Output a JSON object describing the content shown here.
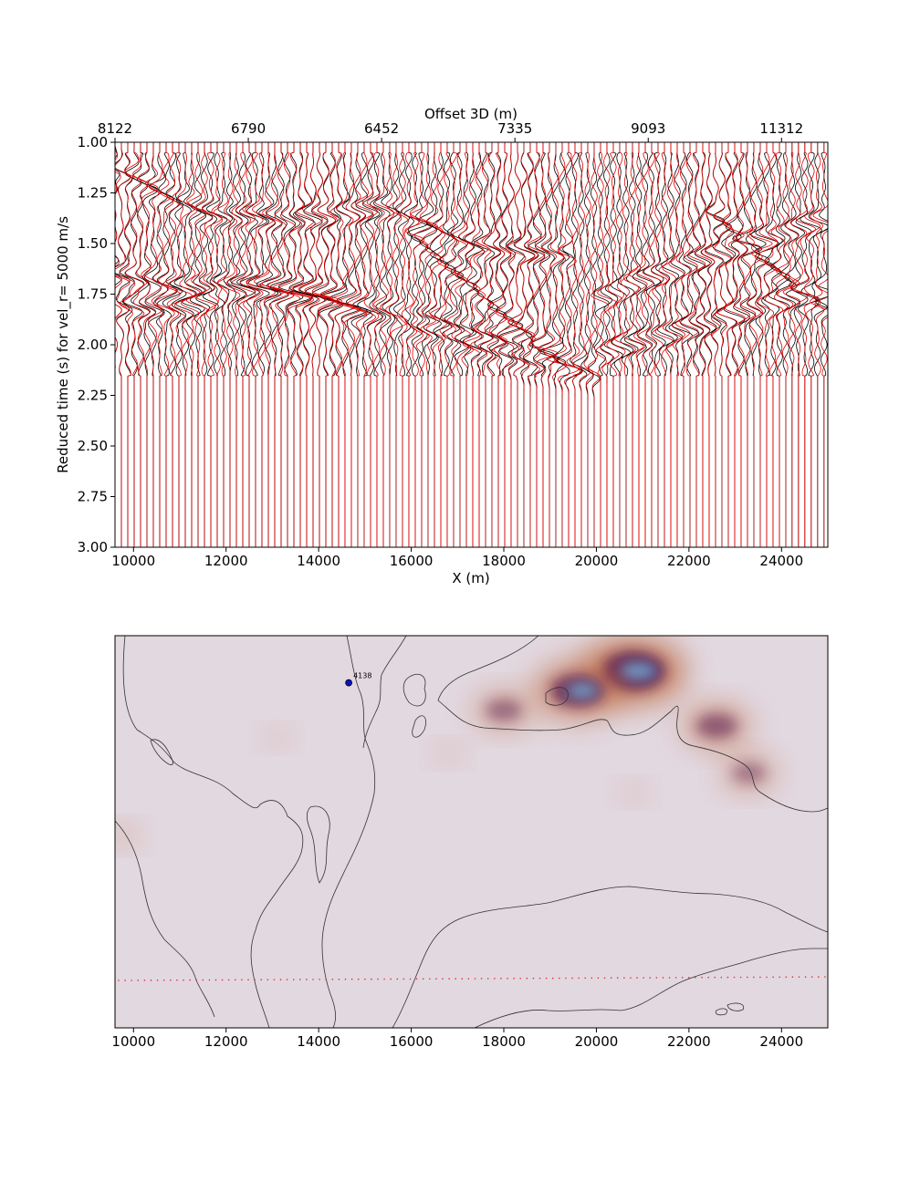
{
  "chart_data": [
    {
      "type": "line",
      "subtype": "seismic-wiggle-section",
      "xlabel": "X (m)",
      "ylabel": "Reduced time (s) for vel_r= 5000 m/s",
      "top_axis_label": "Offset 3D (m)",
      "xlim": [
        9600,
        25000
      ],
      "ylim": [
        3.0,
        1.0
      ],
      "y_inverted": true,
      "x_ticks": [
        10000,
        12000,
        14000,
        16000,
        18000,
        20000,
        22000,
        24000
      ],
      "x_tick_labels": [
        "10000",
        "12000",
        "14000",
        "16000",
        "18000",
        "20000",
        "22000",
        "24000"
      ],
      "y_ticks": [
        1.0,
        1.25,
        1.5,
        1.75,
        2.0,
        2.25,
        2.5,
        2.75,
        3.0
      ],
      "y_tick_labels": [
        "1.00",
        "1.25",
        "1.50",
        "1.75",
        "2.00",
        "2.25",
        "2.50",
        "2.75",
        "3.00"
      ],
      "top_ticks_x": [
        9600,
        12480,
        15360,
        18240,
        21120,
        24000
      ],
      "top_tick_labels": [
        "8122",
        "6790",
        "6452",
        "7335",
        "9093",
        "11312"
      ],
      "trace_count": 112,
      "trace_spacing_m": 138,
      "series": [
        {
          "color": "#000000",
          "description_values": "observed traces"
        },
        {
          "color": "#e00000",
          "description_values": "synthetic traces"
        }
      ],
      "phases": [
        {
          "x": [
            9600,
            11000,
            12400,
            13800,
            15200,
            16600,
            18000,
            19400
          ],
          "t": [
            1.8,
            1.83,
            1.72,
            1.74,
            1.85,
            1.95,
            2.05,
            2.12
          ]
        },
        {
          "x": [
            9600,
            11000,
            12400,
            13800,
            15200,
            16600,
            18000,
            19200
          ],
          "t": [
            1.65,
            1.72,
            1.7,
            1.76,
            1.82,
            1.88,
            1.98,
            2.06
          ]
        },
        {
          "x": [
            9600,
            11500,
            13500,
            15500,
            17500,
            19500
          ],
          "t": [
            1.13,
            1.35,
            1.38,
            1.32,
            1.52,
            1.55
          ]
        },
        {
          "x": [
            16000,
            17000,
            18000,
            19000,
            20000
          ],
          "t": [
            1.45,
            1.65,
            1.85,
            2.05,
            2.15
          ]
        },
        {
          "x": [
            20000,
            21000,
            22000,
            23000,
            24000,
            25000
          ],
          "t": [
            1.78,
            1.68,
            1.6,
            1.52,
            1.45,
            1.38
          ]
        },
        {
          "x": [
            20000,
            21000,
            22000,
            23000,
            24000,
            25000
          ],
          "t": [
            2.05,
            1.98,
            1.92,
            1.85,
            1.78,
            1.72
          ]
        },
        {
          "x": [
            22500,
            23500,
            24500,
            25000
          ],
          "t": [
            1.35,
            1.55,
            1.75,
            1.82
          ]
        }
      ]
    },
    {
      "type": "heatmap",
      "subtype": "map-with-contours",
      "xlim": [
        9600,
        25000
      ],
      "x_ticks": [
        10000,
        12000,
        14000,
        16000,
        18000,
        20000,
        22000,
        24000
      ],
      "x_tick_labels": [
        "10000",
        "12000",
        "14000",
        "16000",
        "18000",
        "20000",
        "22000",
        "24000"
      ],
      "background_color": "#e2d8e0",
      "colormap": "twilight",
      "station_label": "4138",
      "station_x": 14650,
      "station_y_frac": 0.12,
      "receiver_line_color": "#e03030",
      "blobs": [
        {
          "x": 20800,
          "y_frac": 0.09,
          "intensity": 1.0
        },
        {
          "x": 19600,
          "y_frac": 0.14,
          "intensity": 0.8
        },
        {
          "x": 18000,
          "y_frac": 0.19,
          "intensity": 0.45
        },
        {
          "x": 22600,
          "y_frac": 0.23,
          "intensity": 0.55
        },
        {
          "x": 23300,
          "y_frac": 0.35,
          "intensity": 0.4
        },
        {
          "x": 9750,
          "y_frac": 0.51,
          "intensity": 0.15
        },
        {
          "x": 16800,
          "y_frac": 0.3,
          "intensity": 0.08
        },
        {
          "x": 20800,
          "y_frac": 0.4,
          "intensity": 0.07
        },
        {
          "x": 13100,
          "y_frac": 0.26,
          "intensity": 0.06
        }
      ]
    }
  ]
}
